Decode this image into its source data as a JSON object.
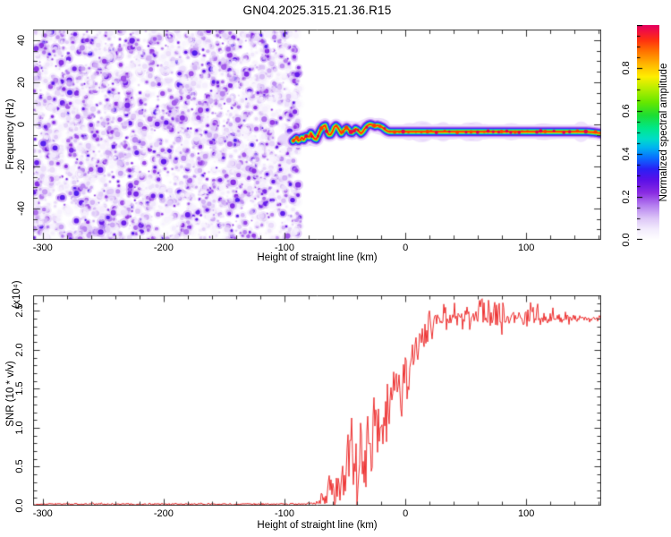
{
  "title": "GN04.2025.315.21.36.R15",
  "frame_color": "#333333",
  "chart_data": [
    {
      "type": "heatmap",
      "name": "spectrogram",
      "xlabel": "Height of straight line (km)",
      "ylabel": "Frequency (Hz)",
      "xlim": [
        -308,
        162
      ],
      "ylim": [
        -55,
        45
      ],
      "xticks": [
        -300,
        -200,
        -100,
        0,
        100
      ],
      "yticks": [
        -40,
        -20,
        0,
        20,
        40
      ],
      "x_minor_step": 20,
      "y_minor_step": 5,
      "colorbar": {
        "label": "Normalized spectral amplitude",
        "ticks": [
          0.0,
          0.2,
          0.4,
          0.6,
          0.8
        ],
        "range": [
          0,
          1
        ],
        "minor_step": 0.05,
        "major_step": 0.2,
        "colormap_stops": [
          [
            0.0,
            "#ffffff"
          ],
          [
            0.05,
            "#f3ecfd"
          ],
          [
            0.1,
            "#ddc6f7"
          ],
          [
            0.16,
            "#b57ff0"
          ],
          [
            0.22,
            "#8a2be2"
          ],
          [
            0.28,
            "#5a10e8"
          ],
          [
            0.33,
            "#2a20f5"
          ],
          [
            0.38,
            "#0a6cff"
          ],
          [
            0.43,
            "#00b4f0"
          ],
          [
            0.47,
            "#00ddc8"
          ],
          [
            0.52,
            "#00e88a"
          ],
          [
            0.58,
            "#1ddd33"
          ],
          [
            0.64,
            "#66e800"
          ],
          [
            0.7,
            "#b2ee00"
          ],
          [
            0.76,
            "#ffee00"
          ],
          [
            0.82,
            "#ffb400"
          ],
          [
            0.88,
            "#ff7000"
          ],
          [
            0.93,
            "#ff3010"
          ],
          [
            0.97,
            "#f21140"
          ],
          [
            1.0,
            "#e4005f"
          ]
        ]
      },
      "noise_region": {
        "description": "random speckle noise, light-to-deep violet on white",
        "x_range": [
          -308,
          -87
        ],
        "value_range": [
          0.03,
          0.3
        ]
      },
      "signal_ridge": {
        "description": "narrow high-amplitude carrier ridge near 0 Hz; wavy from -93 to -13 km then straight",
        "core_value": 1.0,
        "straight_from_x": -13,
        "points": [
          [
            -93,
            -8
          ],
          [
            -90,
            -6.5
          ],
          [
            -88,
            -8.5
          ],
          [
            -86,
            -6
          ],
          [
            -84,
            -7.5
          ],
          [
            -82,
            -5
          ],
          [
            -80,
            -6.5
          ],
          [
            -78,
            -4
          ],
          [
            -76,
            -6.5
          ],
          [
            -74,
            -7.5
          ],
          [
            -72,
            -5
          ],
          [
            -70,
            -2.5
          ],
          [
            -68,
            -1
          ],
          [
            -66,
            -0.5
          ],
          [
            -65,
            -3
          ],
          [
            -63,
            -5.5
          ],
          [
            -61,
            -4.5
          ],
          [
            -59,
            -1.5
          ],
          [
            -57,
            -0.5
          ],
          [
            -55,
            -2.5
          ],
          [
            -53,
            -4.5
          ],
          [
            -51,
            -3
          ],
          [
            -49,
            -1.5
          ],
          [
            -47,
            -2.5
          ],
          [
            -45,
            -4.5
          ],
          [
            -43,
            -3.5
          ],
          [
            -41,
            -2
          ],
          [
            -39,
            -3
          ],
          [
            -37,
            -4.5
          ],
          [
            -35,
            -3.5
          ],
          [
            -33,
            -1.5
          ],
          [
            -31,
            -0.5
          ],
          [
            -29,
            0
          ],
          [
            -27,
            -0.5
          ],
          [
            -25,
            -1
          ],
          [
            -23,
            -0.5
          ],
          [
            -21,
            -1
          ],
          [
            -19,
            -1.5
          ],
          [
            -17,
            -2.5
          ],
          [
            -15,
            -3.3
          ],
          [
            -13,
            -3.6
          ],
          [
            150,
            -3.6
          ],
          [
            156,
            -3.9
          ],
          [
            162,
            -4.4
          ]
        ]
      }
    },
    {
      "type": "line",
      "name": "snr",
      "xlabel": "Height of straight line (km)",
      "ylabel": "SNR (10 * v/v)",
      "y_multiplier_label": "(x10⁴)",
      "xlim": [
        -308,
        162
      ],
      "ylim": [
        0,
        2.7
      ],
      "xticks": [
        -300,
        -200,
        -100,
        0,
        100
      ],
      "yticks": [
        0.0,
        0.5,
        1.0,
        1.5,
        2.0,
        2.5
      ],
      "x_minor_step": 20,
      "y_minor_step": 0.1,
      "line_color": "#ee3030",
      "profile": [
        [
          -308,
          0.02,
          0.012
        ],
        [
          -90,
          0.02,
          0.012
        ],
        [
          -72,
          0.03,
          0.02
        ],
        [
          -67,
          0.12,
          0.1
        ],
        [
          -62,
          0.22,
          0.18
        ],
        [
          -57,
          0.2,
          0.14
        ],
        [
          -52,
          0.3,
          0.25
        ],
        [
          -47,
          0.55,
          0.6
        ],
        [
          -43,
          0.5,
          0.5
        ],
        [
          -38,
          0.6,
          0.45
        ],
        [
          -33,
          0.75,
          0.4
        ],
        [
          -28,
          0.85,
          0.45
        ],
        [
          -23,
          1.0,
          0.5
        ],
        [
          -19,
          1.2,
          0.75
        ],
        [
          -15,
          1.3,
          0.5
        ],
        [
          -10,
          1.5,
          0.45
        ],
        [
          -5,
          1.6,
          0.4
        ],
        [
          0,
          1.75,
          0.4
        ],
        [
          5,
          1.9,
          0.35
        ],
        [
          10,
          2.05,
          0.3
        ],
        [
          15,
          2.2,
          0.25
        ],
        [
          22,
          2.3,
          0.2
        ],
        [
          30,
          2.4,
          0.15
        ],
        [
          45,
          2.42,
          0.13
        ],
        [
          60,
          2.45,
          0.15
        ],
        [
          75,
          2.45,
          0.18
        ],
        [
          90,
          2.4,
          0.12
        ],
        [
          105,
          2.45,
          0.13
        ],
        [
          120,
          2.42,
          0.1
        ],
        [
          135,
          2.4,
          0.06
        ],
        [
          150,
          2.4,
          0.04
        ],
        [
          162,
          2.41,
          0.03
        ]
      ]
    }
  ]
}
